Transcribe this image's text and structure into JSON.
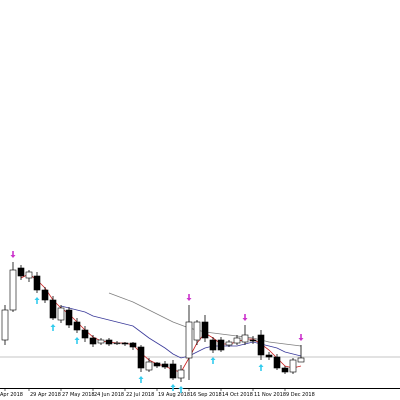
{
  "chart_data": {
    "type": "candlestick",
    "categories": [
      "Apr 2018",
      null,
      null,
      "29 Apr 2018",
      null,
      null,
      null,
      "27 May 2018",
      null,
      null,
      null,
      "24 Jun 2018",
      null,
      null,
      null,
      "22 Jul 2018",
      null,
      null,
      null,
      "19 Aug 2018",
      null,
      null,
      null,
      "16 Sep 2018",
      null,
      null,
      null,
      "14 Oct 2018",
      null,
      null,
      null,
      "11 Nov 2018",
      null,
      null,
      null,
      "9 Dec 2018",
      null,
      null
    ],
    "open": [
      48,
      78,
      120,
      110,
      112,
      98,
      88,
      68,
      78,
      66,
      58,
      50,
      45,
      48,
      45,
      45,
      45,
      41,
      18,
      25,
      24,
      24,
      10,
      30,
      48,
      66,
      48,
      48,
      43,
      45,
      46,
      48,
      53,
      33,
      31,
      20,
      16,
      26
    ],
    "high": [
      83,
      126,
      123,
      118,
      116,
      101,
      92,
      83,
      81,
      70,
      62,
      53,
      50,
      50,
      47,
      46,
      46,
      43,
      30,
      26,
      27,
      28,
      23,
      83,
      68,
      73,
      51,
      51,
      48,
      53,
      63,
      52,
      58,
      36,
      34,
      22,
      30,
      43
    ],
    "low": [
      43,
      76,
      108,
      106,
      95,
      85,
      68,
      65,
      60,
      55,
      46,
      41,
      43,
      42,
      43,
      42,
      38,
      16,
      16,
      20,
      19,
      8,
      6,
      8,
      43,
      46,
      35,
      36,
      41,
      43,
      43,
      44,
      28,
      28,
      18,
      14,
      14,
      26
    ],
    "close": [
      78,
      118,
      112,
      116,
      98,
      88,
      70,
      80,
      63,
      58,
      50,
      44,
      48,
      44,
      45,
      44,
      41,
      20,
      26,
      22,
      21,
      10,
      18,
      66,
      66,
      50,
      38,
      38,
      46,
      50,
      53,
      47,
      33,
      31,
      20,
      16,
      28,
      30
    ],
    "ylim": [
      0,
      388
    ],
    "lines": [
      {
        "color": "#cc2020",
        "values": [
          null,
          null,
          110,
          114,
          108,
          100,
          88,
          80,
          74,
          66,
          58,
          51,
          47,
          46,
          45,
          45,
          43,
          35,
          28,
          24,
          22,
          18,
          16,
          30,
          45,
          55,
          50,
          44,
          44,
          46,
          49,
          49,
          44,
          38,
          30,
          22,
          20,
          22
        ]
      },
      {
        "color": "#3a3a9a",
        "values": [
          null,
          null,
          null,
          null,
          null,
          null,
          null,
          82,
          80,
          78,
          76,
          72,
          70,
          68,
          66,
          64,
          62,
          56,
          50,
          45,
          40,
          34,
          30,
          32,
          36,
          40,
          42,
          42,
          42,
          42,
          44,
          46,
          44,
          42,
          40,
          36,
          34,
          32
        ]
      },
      {
        "color": "#808080",
        "values": [
          null,
          null,
          null,
          null,
          null,
          null,
          null,
          null,
          null,
          null,
          null,
          null,
          null,
          95,
          92,
          89,
          86,
          82,
          78,
          74,
          70,
          66,
          63,
          60,
          58,
          56,
          55,
          54,
          53,
          52,
          51,
          50,
          48,
          46,
          45,
          44,
          43,
          42
        ]
      }
    ],
    "arrows_down": {
      "color": "#cc33cc",
      "values": [
        null,
        126,
        null,
        null,
        null,
        null,
        null,
        null,
        null,
        null,
        null,
        null,
        null,
        null,
        null,
        null,
        null,
        null,
        null,
        null,
        null,
        null,
        null,
        83,
        null,
        null,
        null,
        null,
        null,
        null,
        63,
        null,
        null,
        null,
        null,
        null,
        null,
        43
      ]
    },
    "arrows_up": {
      "color": "#33ccee",
      "values": [
        null,
        null,
        null,
        null,
        95,
        null,
        68,
        null,
        null,
        55,
        null,
        null,
        null,
        null,
        null,
        null,
        null,
        16,
        null,
        null,
        null,
        8,
        6,
        null,
        null,
        null,
        35,
        null,
        null,
        null,
        null,
        null,
        28,
        null,
        null,
        null,
        null,
        null
      ]
    },
    "price_line": {
      "value": 31,
      "color": "#b0b0b0"
    }
  }
}
